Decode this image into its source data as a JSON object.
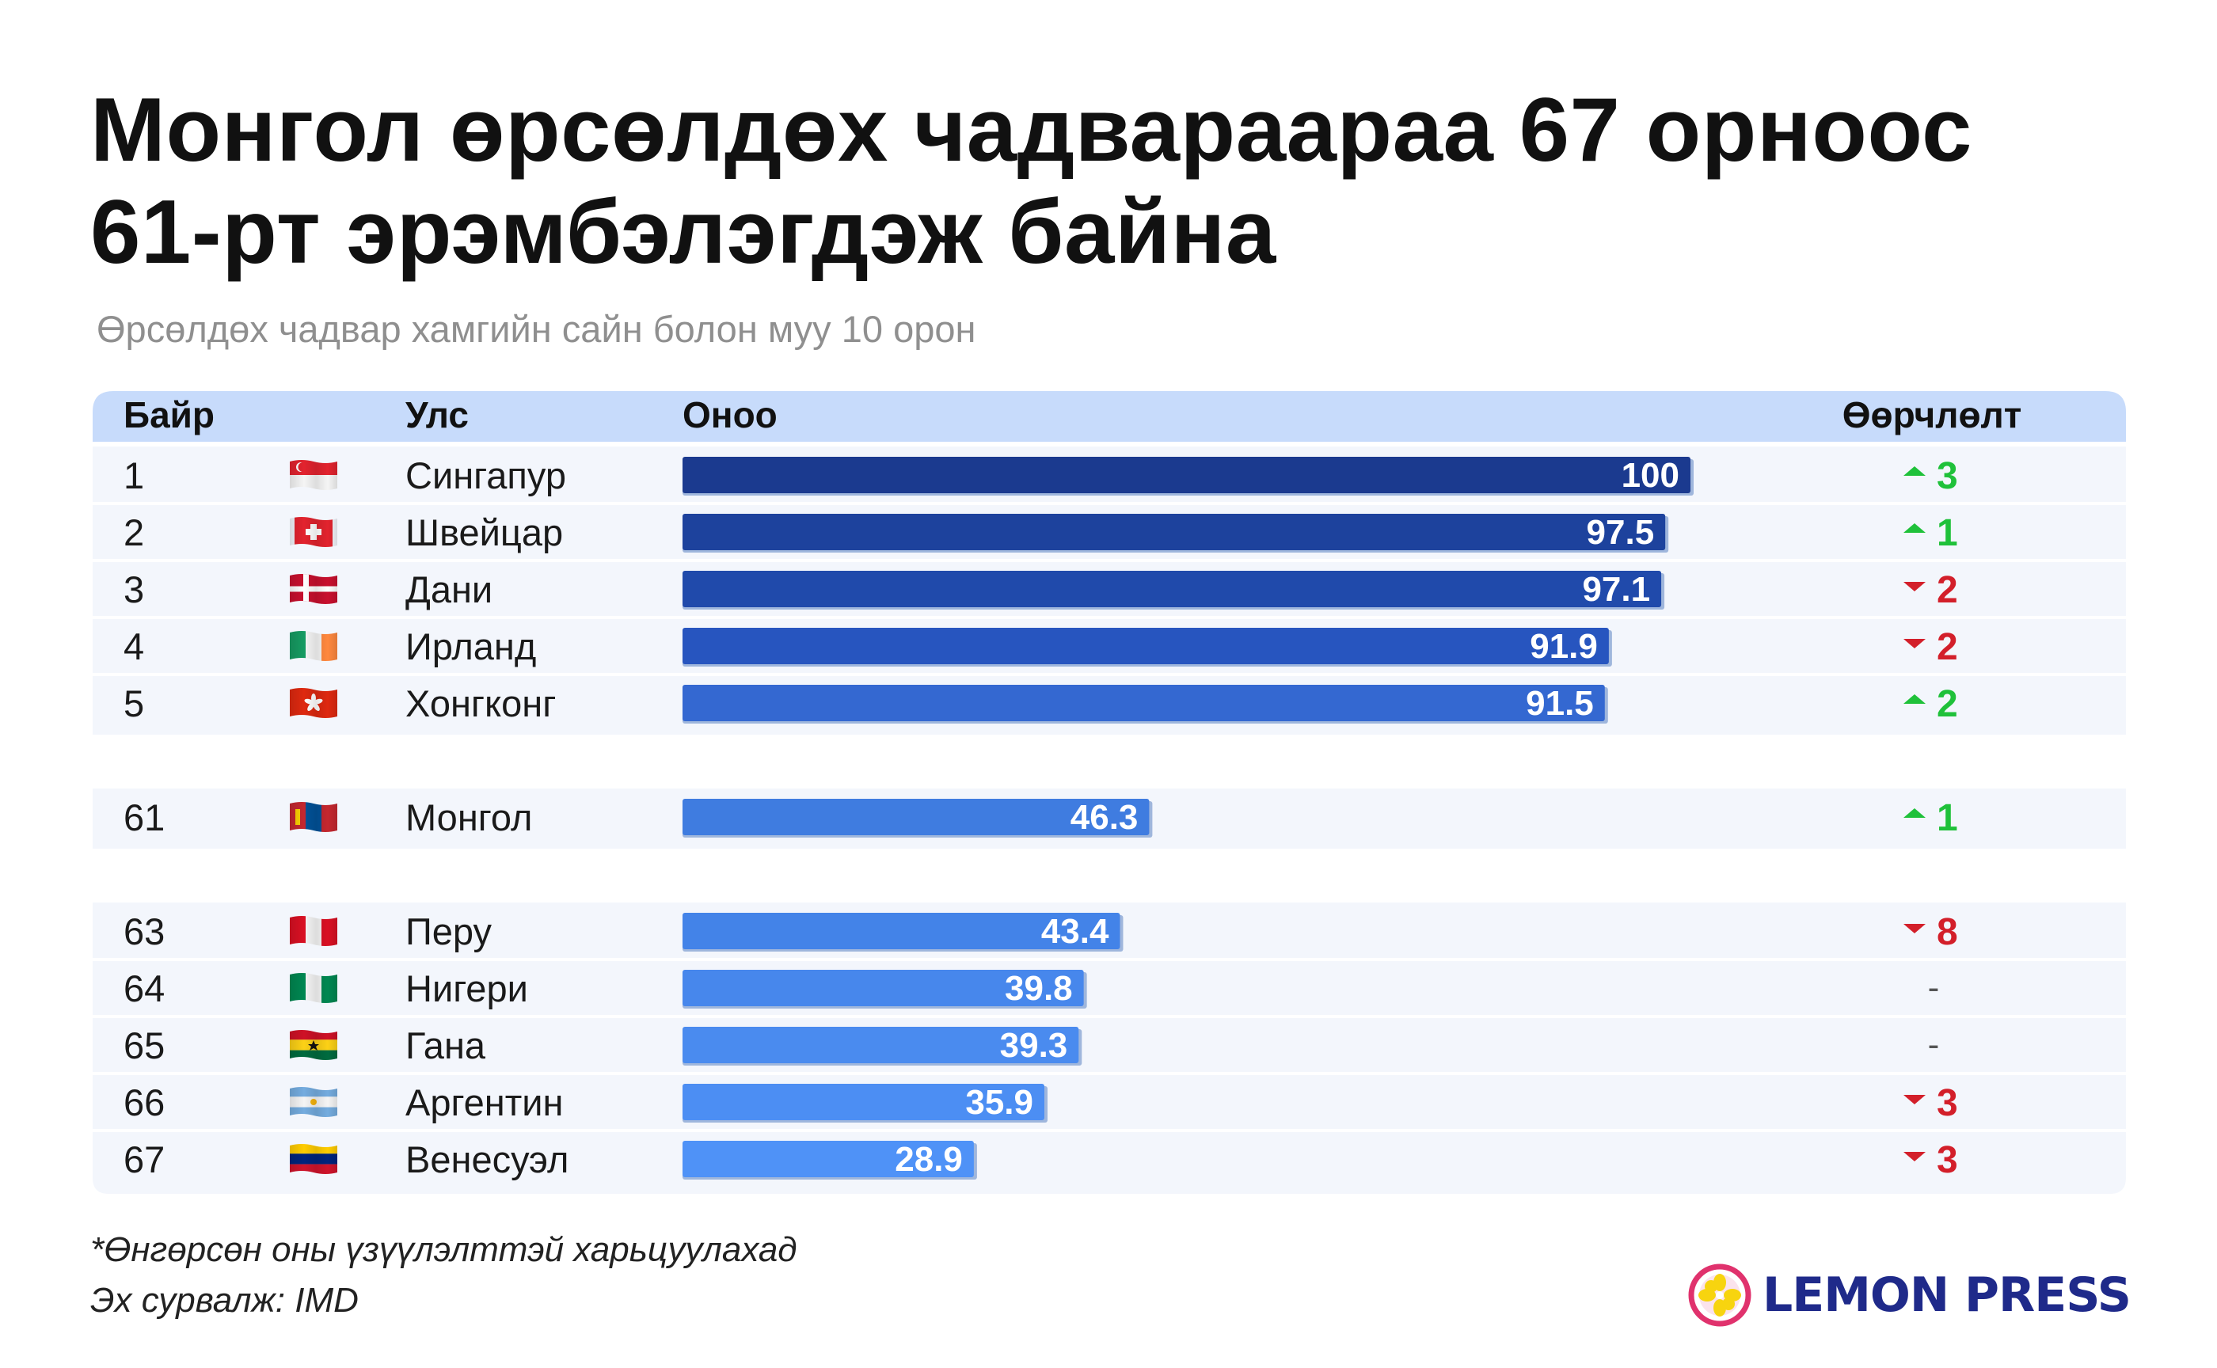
{
  "title_line1": "Монгол өрсөлдөх чадвараараа 67 орноос",
  "title_line2": "61-рт эрэмбэлэгдэж байна",
  "subtitle": "Өрсөлдөх чадвар хамгийн сайн болон муу 10 орон",
  "footnote": "*Өнгөрсөн оны үзүүлэлттэй харьцуулахад",
  "source": "Эх сурвалж: IMD",
  "logo_text": "LEMON PRESS",
  "colors": {
    "up": "#1fc13a",
    "down": "#d31f2a",
    "header_bg": "#c7dbfb",
    "row_bg": "#f3f6fc"
  },
  "chart_data": {
    "type": "bar",
    "headers": {
      "rank": "Байр",
      "country": "Улс",
      "score": "Оноо",
      "change": "Өөрчлөлт"
    },
    "xlim": [
      0,
      100
    ],
    "groups": [
      [
        {
          "rank": "1",
          "flag": "singapore-flag",
          "country": "Сингапур",
          "score": 100,
          "score_label": "100",
          "change_dir": "up",
          "change": "3",
          "color": "#1b3a8f"
        },
        {
          "rank": "2",
          "flag": "switzerland-flag",
          "country": "Швейцар",
          "score": 97.5,
          "score_label": "97.5",
          "change_dir": "up",
          "change": "1",
          "color": "#1d429d"
        },
        {
          "rank": "3",
          "flag": "denmark-flag",
          "country": "Дани",
          "score": 97.1,
          "score_label": "97.1",
          "change_dir": "down",
          "change": "2",
          "color": "#204aab"
        },
        {
          "rank": "4",
          "flag": "ireland-flag",
          "country": "Ирланд",
          "score": 91.9,
          "score_label": "91.9",
          "change_dir": "down",
          "change": "2",
          "color": "#2755bf"
        },
        {
          "rank": "5",
          "flag": "hongkong-flag",
          "country": "Хонгконг",
          "score": 91.5,
          "score_label": "91.5",
          "change_dir": "up",
          "change": "2",
          "color": "#3468d1"
        }
      ],
      [
        {
          "rank": "61",
          "flag": "mongolia-flag",
          "country": "Монгол",
          "score": 46.3,
          "score_label": "46.3",
          "change_dir": "up",
          "change": "1",
          "color": "#3f7ce0"
        }
      ],
      [
        {
          "rank": "63",
          "flag": "peru-flag",
          "country": "Перу",
          "score": 43.4,
          "score_label": "43.4",
          "change_dir": "down",
          "change": "8",
          "color": "#4383e8"
        },
        {
          "rank": "64",
          "flag": "nigeria-flag",
          "country": "Нигери",
          "score": 39.8,
          "score_label": "39.8",
          "change_dir": "none",
          "change": "-",
          "color": "#4787ec"
        },
        {
          "rank": "65",
          "flag": "ghana-flag",
          "country": "Гана",
          "score": 39.3,
          "score_label": "39.3",
          "change_dir": "none",
          "change": "-",
          "color": "#4a8bef"
        },
        {
          "rank": "66",
          "flag": "argentina-flag",
          "country": "Аргентин",
          "score": 35.9,
          "score_label": "35.9",
          "change_dir": "down",
          "change": "3",
          "color": "#4c8ef3"
        },
        {
          "rank": "67",
          "flag": "venezuela-flag",
          "country": "Венесуэл",
          "score": 28.9,
          "score_label": "28.9",
          "change_dir": "down",
          "change": "3",
          "color": "#4f92f7"
        }
      ]
    ]
  }
}
